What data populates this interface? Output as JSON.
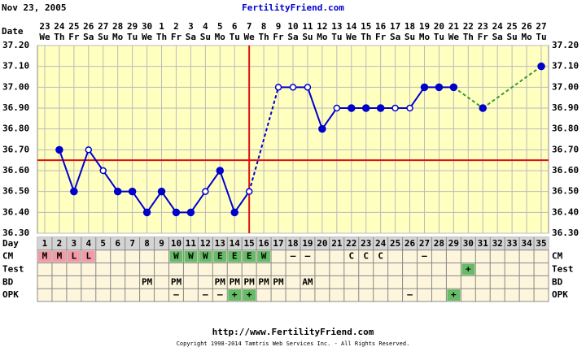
{
  "header": {
    "date": "Nov 23, 2005",
    "site": "FertilityFriend.com",
    "date_label": "Date",
    "dates": [
      "23",
      "24",
      "25",
      "26",
      "27",
      "28",
      "29",
      "30",
      "1",
      "2",
      "3",
      "4",
      "5",
      "6",
      "7",
      "8",
      "9",
      "10",
      "11",
      "12",
      "13",
      "14",
      "15",
      "16",
      "17",
      "18",
      "19",
      "20",
      "21",
      "22",
      "23",
      "24",
      "25",
      "26",
      "27"
    ],
    "weekdays": [
      "We",
      "Th",
      "Fr",
      "Sa",
      "Su",
      "Mo",
      "Tu",
      "We",
      "Th",
      "Fr",
      "Sa",
      "Su",
      "Mo",
      "Tu",
      "We",
      "Th",
      "Fr",
      "Sa",
      "Su",
      "Mo",
      "Tu",
      "We",
      "Th",
      "Fr",
      "Sa",
      "Su",
      "Mo",
      "Tu",
      "We",
      "Th",
      "Fr",
      "Sa",
      "Su",
      "Mo",
      "Tu"
    ]
  },
  "chart_data": {
    "type": "line",
    "day_label": "Day",
    "categories": [
      1,
      2,
      3,
      4,
      5,
      6,
      7,
      8,
      9,
      10,
      11,
      12,
      13,
      14,
      15,
      16,
      17,
      18,
      19,
      20,
      21,
      22,
      23,
      24,
      25,
      26,
      27,
      28,
      29,
      30,
      31,
      32,
      33,
      34,
      35
    ],
    "values": [
      null,
      36.7,
      36.5,
      36.7,
      36.6,
      36.5,
      36.5,
      36.4,
      36.5,
      36.4,
      36.4,
      36.5,
      36.6,
      36.4,
      36.5,
      null,
      37.0,
      37.0,
      37.0,
      36.8,
      36.9,
      36.9,
      36.9,
      36.9,
      36.9,
      36.9,
      37.0,
      37.0,
      37.0,
      null,
      36.9,
      null,
      null,
      null,
      37.1
    ],
    "open": [
      false,
      false,
      false,
      true,
      true,
      false,
      false,
      false,
      false,
      false,
      false,
      true,
      false,
      false,
      true,
      false,
      true,
      true,
      true,
      false,
      true,
      false,
      false,
      false,
      true,
      true,
      false,
      false,
      false,
      false,
      false,
      false,
      false,
      false,
      false
    ],
    "color": "#0000cc",
    "gap_colors": [
      "#0000cc",
      "#339933",
      "#339933"
    ],
    "coverline": 36.65,
    "ovulation_day": 15,
    "marker_line_color": "#dd1111",
    "ylim": [
      36.3,
      37.2
    ],
    "yticks": [
      {
        "value": 36.3,
        "label": "36.30"
      },
      {
        "value": 36.4,
        "label": "36.40"
      },
      {
        "value": 36.5,
        "label": "36.50"
      },
      {
        "value": 36.6,
        "label": "36.60"
      },
      {
        "value": 36.7,
        "label": "36.70"
      },
      {
        "value": 36.8,
        "label": "36.80"
      },
      {
        "value": 36.9,
        "label": "36.90"
      },
      {
        "value": 37.0,
        "label": "37.00"
      },
      {
        "value": 37.1,
        "label": "37.10"
      },
      {
        "value": 37.2,
        "label": "37.20"
      }
    ],
    "grid": true
  },
  "rows": [
    {
      "label": "CM",
      "cells": [
        "M",
        "M",
        "L",
        "L",
        null,
        null,
        null,
        null,
        null,
        "W",
        "W",
        "W",
        "E",
        "E",
        "E",
        "W",
        null,
        "–",
        "–",
        null,
        null,
        "C",
        "C",
        "C",
        null,
        null,
        "–",
        null,
        null,
        null,
        null,
        null,
        null,
        null,
        null
      ]
    },
    {
      "label": "Test",
      "cells": [
        null,
        null,
        null,
        null,
        null,
        null,
        null,
        null,
        null,
        null,
        null,
        null,
        null,
        null,
        null,
        null,
        null,
        null,
        null,
        null,
        null,
        null,
        null,
        null,
        null,
        null,
        null,
        null,
        null,
        "+",
        null,
        null,
        null,
        null,
        null
      ]
    },
    {
      "label": "BD",
      "cells": [
        null,
        null,
        null,
        null,
        null,
        null,
        null,
        "PM",
        null,
        "PM",
        null,
        null,
        "PM",
        "PM",
        "PM",
        "PM",
        "PM",
        null,
        "AM",
        null,
        null,
        null,
        null,
        null,
        null,
        null,
        null,
        null,
        null,
        null,
        null,
        null,
        null,
        null,
        null
      ]
    },
    {
      "label": "OPK",
      "cells": [
        null,
        null,
        null,
        null,
        null,
        null,
        null,
        null,
        null,
        "–",
        null,
        "–",
        "–",
        "+",
        "+",
        null,
        null,
        null,
        null,
        null,
        null,
        null,
        null,
        null,
        null,
        "–",
        null,
        null,
        "+",
        null,
        null,
        null,
        null,
        null,
        null
      ]
    }
  ],
  "cell_fills": {
    "M": "#f29aa8",
    "L": "#f29aa8",
    "W": "#66bb66",
    "E": "#66bb66",
    "+": "#66bb66"
  },
  "footer": {
    "url": "http://www.FertilityFriend.com",
    "copyright": "Copyright 1998-2014 Tamtris Web Services Inc. - All Rights Reserved."
  }
}
